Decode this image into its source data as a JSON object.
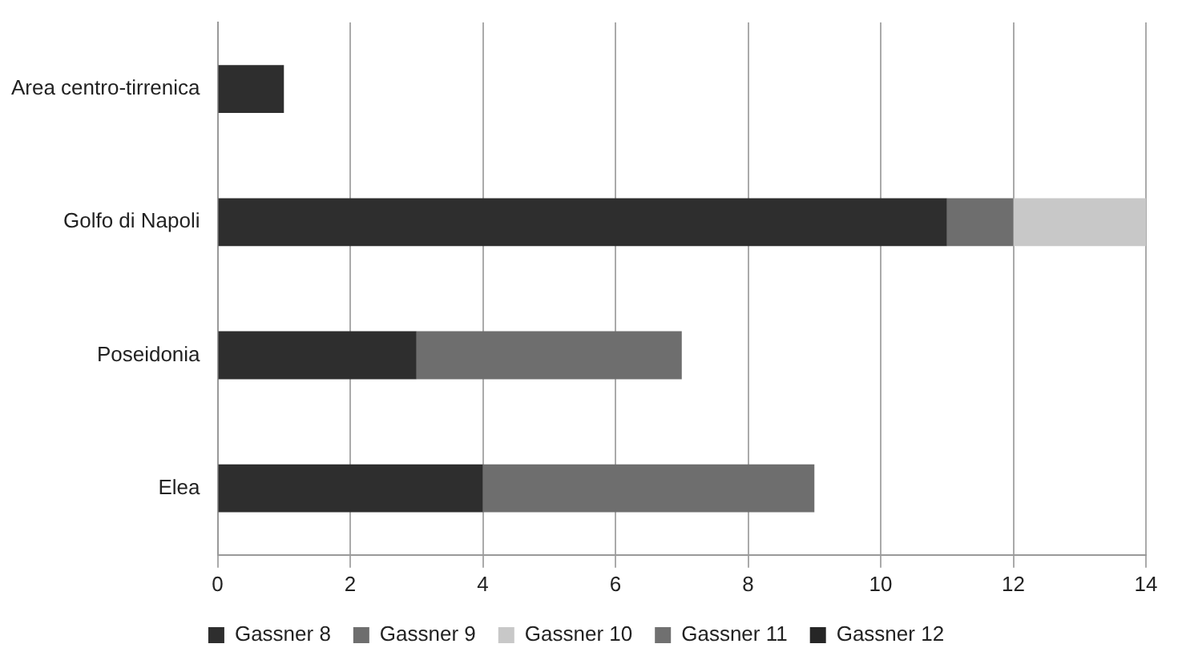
{
  "chart_data": {
    "type": "bar",
    "orientation": "horizontal",
    "stacked": true,
    "categories": [
      "Area centro-tirrenica",
      "Golfo di Napoli",
      "Poseidonia",
      "Elea"
    ],
    "series": [
      {
        "name": "Gassner 8",
        "color": "#2e2e2e",
        "values": [
          1,
          11,
          3,
          4
        ]
      },
      {
        "name": "Gassner 9",
        "color": "#6e6e6e",
        "values": [
          null,
          1,
          4,
          5
        ]
      },
      {
        "name": "Gassner 10",
        "color": "#c8c8c8",
        "values": [
          null,
          2,
          null,
          null
        ]
      },
      {
        "name": "Gassner 11",
        "color": "#707070",
        "values": [
          null,
          null,
          null,
          null
        ]
      },
      {
        "name": "Gassner 12",
        "color": "#262626",
        "values": [
          null,
          null,
          null,
          null
        ]
      }
    ],
    "xlim": [
      0,
      14
    ],
    "xticks": [
      0,
      2,
      4,
      6,
      8,
      10,
      12,
      14
    ],
    "grid": "x",
    "legend": "bottom"
  }
}
